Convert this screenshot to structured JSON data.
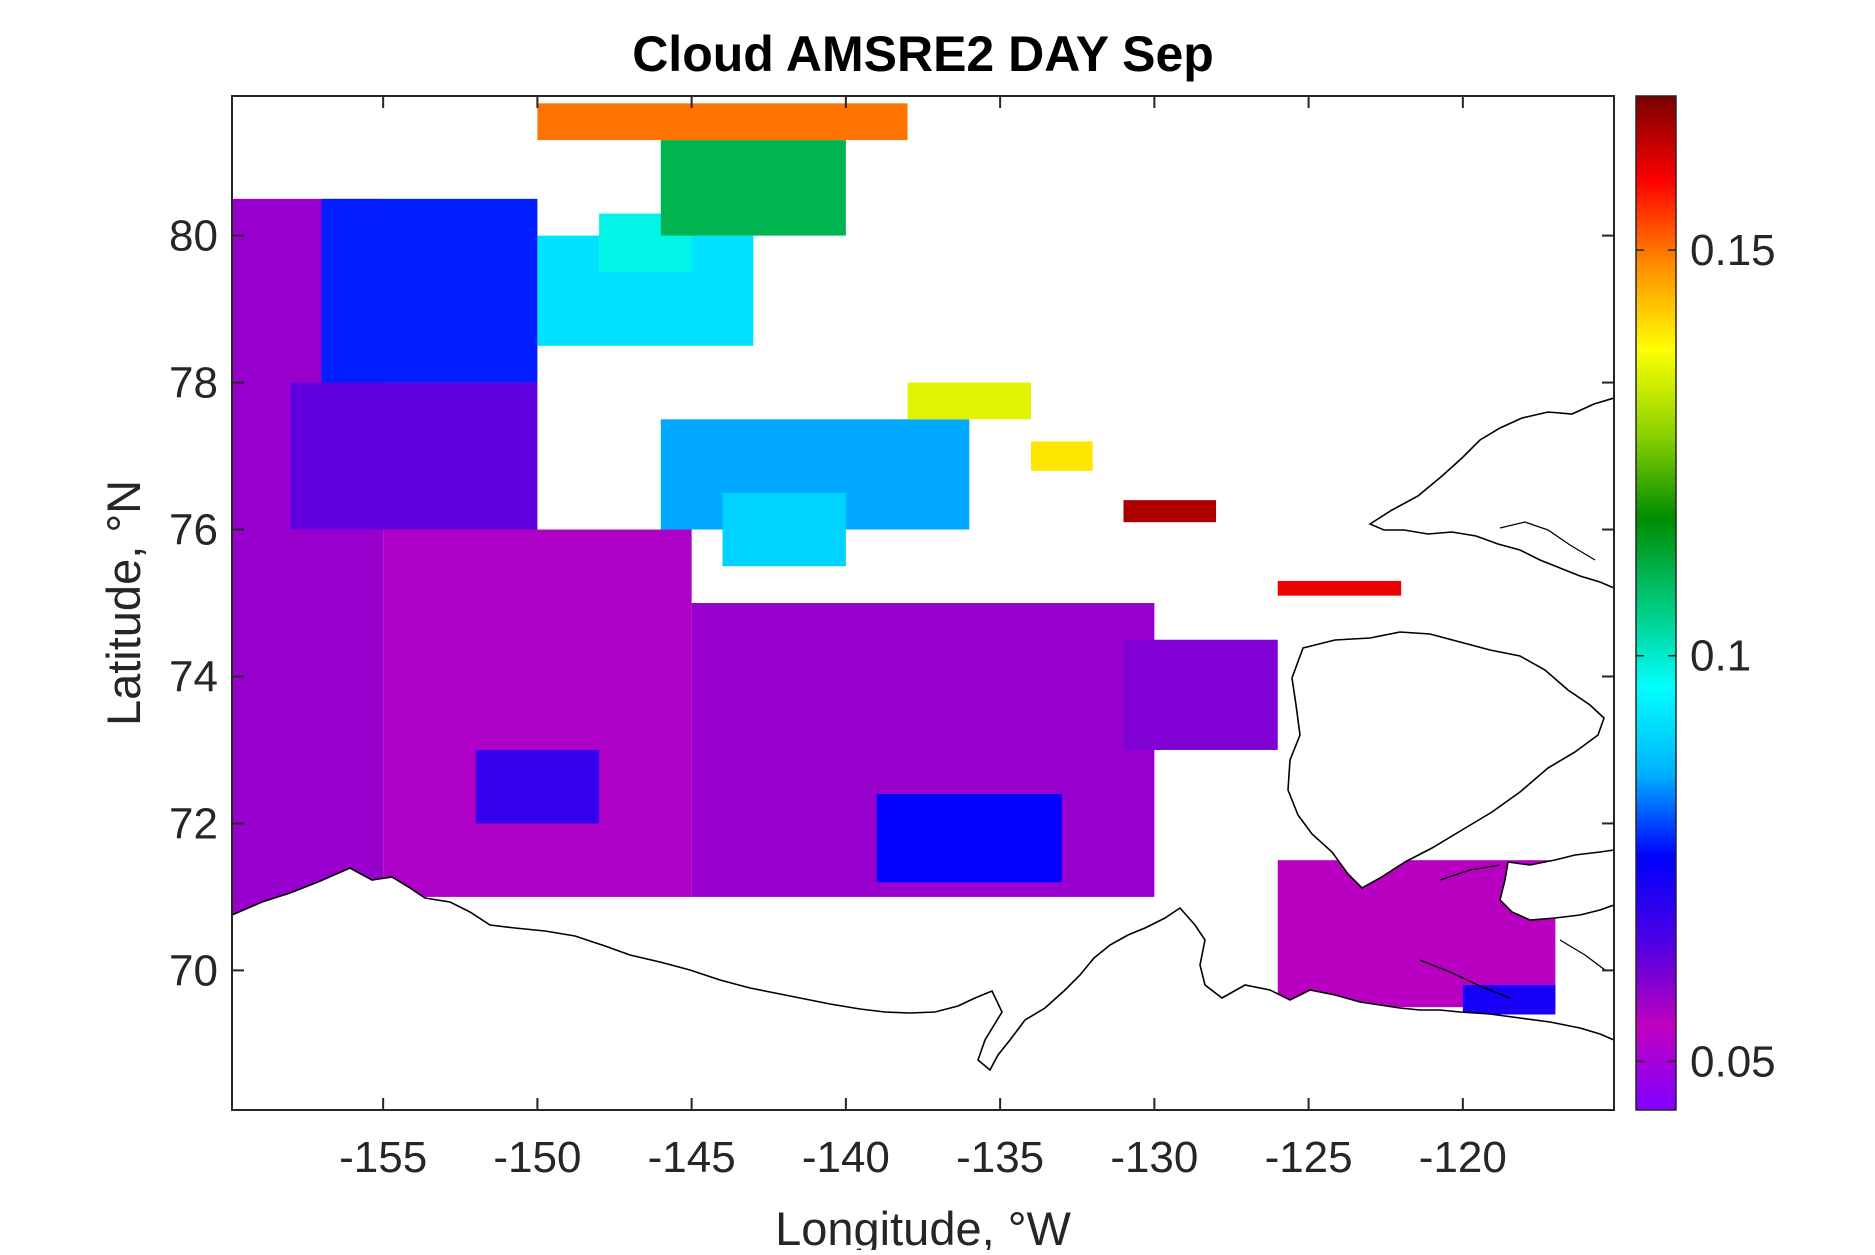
{
  "title": "Cloud AMSRE2 DAY Sep",
  "x_axis": {
    "label": "Longitude, °W",
    "ticks": [
      "-155",
      "-150",
      "-145",
      "-140",
      "-135",
      "-130",
      "-125",
      "-120"
    ],
    "tick_values": [
      -155,
      -150,
      -145,
      -140,
      -135,
      -130,
      -125,
      -120
    ],
    "range": [
      -159.9,
      -115.1
    ]
  },
  "y_axis": {
    "label": "Latitude, °N",
    "ticks": [
      "70",
      "72",
      "74",
      "76",
      "78",
      "80"
    ],
    "tick_values": [
      70,
      72,
      74,
      76,
      78,
      80
    ],
    "range": [
      68.1,
      81.9
    ]
  },
  "colorbar": {
    "ticks": [
      "0.05",
      "0.1",
      "0.15"
    ],
    "tick_values": [
      0.05,
      0.1,
      0.15
    ],
    "range": [
      0.044,
      0.169
    ],
    "colormap": [
      "#8000ff",
      "#c000c0",
      "#4b00e6",
      "#0000ff",
      "#00b4ff",
      "#00ffff",
      "#00c878",
      "#008c00",
      "#8cd200",
      "#ffff00",
      "#ff8c00",
      "#ff0000",
      "#780000"
    ]
  },
  "chart_data": {
    "type": "heatmap",
    "title": "Cloud AMSRE2 DAY Sep",
    "xlabel": "Longitude, °W",
    "ylabel": "Latitude, °N",
    "xlim": [
      -159.9,
      -115.1
    ],
    "ylim": [
      68.1,
      81.9
    ],
    "zlim": [
      0.044,
      0.169
    ],
    "grid": false,
    "colorbar": "right",
    "regions": [
      {
        "lon": [
          -160,
          -155
        ],
        "lat": [
          70.5,
          80.5
        ],
        "value": 0.058
      },
      {
        "lon": [
          -155,
          -145
        ],
        "lat": [
          71,
          76
        ],
        "value": 0.056
      },
      {
        "lon": [
          -152,
          -148
        ],
        "lat": [
          72,
          73
        ],
        "value": 0.068
      },
      {
        "lon": [
          -158,
          -150
        ],
        "lat": [
          76,
          78
        ],
        "value": 0.063
      },
      {
        "lon": [
          -157,
          -150
        ],
        "lat": [
          78,
          80.5
        ],
        "value": 0.077
      },
      {
        "lon": [
          -150,
          -143
        ],
        "lat": [
          78.5,
          80
        ],
        "value": 0.092
      },
      {
        "lon": [
          -148,
          -145
        ],
        "lat": [
          79.5,
          80.3
        ],
        "value": 0.098
      },
      {
        "lon": [
          -146,
          -140
        ],
        "lat": [
          80,
          81.3
        ],
        "value": 0.11
      },
      {
        "lon": [
          -150,
          -138
        ],
        "lat": [
          81.3,
          81.8
        ],
        "value": 0.15
      },
      {
        "lon": [
          -146,
          -136
        ],
        "lat": [
          76,
          77.5
        ],
        "value": 0.085
      },
      {
        "lon": [
          -144,
          -140
        ],
        "lat": [
          75.5,
          76.5
        ],
        "value": 0.09
      },
      {
        "lon": [
          -138,
          -134
        ],
        "lat": [
          77.5,
          78
        ],
        "value": 0.135
      },
      {
        "lon": [
          -134,
          -132
        ],
        "lat": [
          76.8,
          77.2
        ],
        "value": 0.14
      },
      {
        "lon": [
          -131,
          -128
        ],
        "lat": [
          76.1,
          76.4
        ],
        "value": 0.165
      },
      {
        "lon": [
          -126,
          -122
        ],
        "lat": [
          75.1,
          75.3
        ],
        "value": 0.16
      },
      {
        "lon": [
          -145,
          -130
        ],
        "lat": [
          71,
          75
        ],
        "value": 0.058
      },
      {
        "lon": [
          -139,
          -133
        ],
        "lat": [
          71.2,
          72.4
        ],
        "value": 0.075
      },
      {
        "lon": [
          -131,
          -126
        ],
        "lat": [
          73,
          74.5
        ],
        "value": 0.06
      },
      {
        "lon": [
          -126,
          -117
        ],
        "lat": [
          69.5,
          71.5
        ],
        "value": 0.055
      },
      {
        "lon": [
          -120,
          -117
        ],
        "lat": [
          69.4,
          69.8
        ],
        "value": 0.072
      }
    ]
  }
}
